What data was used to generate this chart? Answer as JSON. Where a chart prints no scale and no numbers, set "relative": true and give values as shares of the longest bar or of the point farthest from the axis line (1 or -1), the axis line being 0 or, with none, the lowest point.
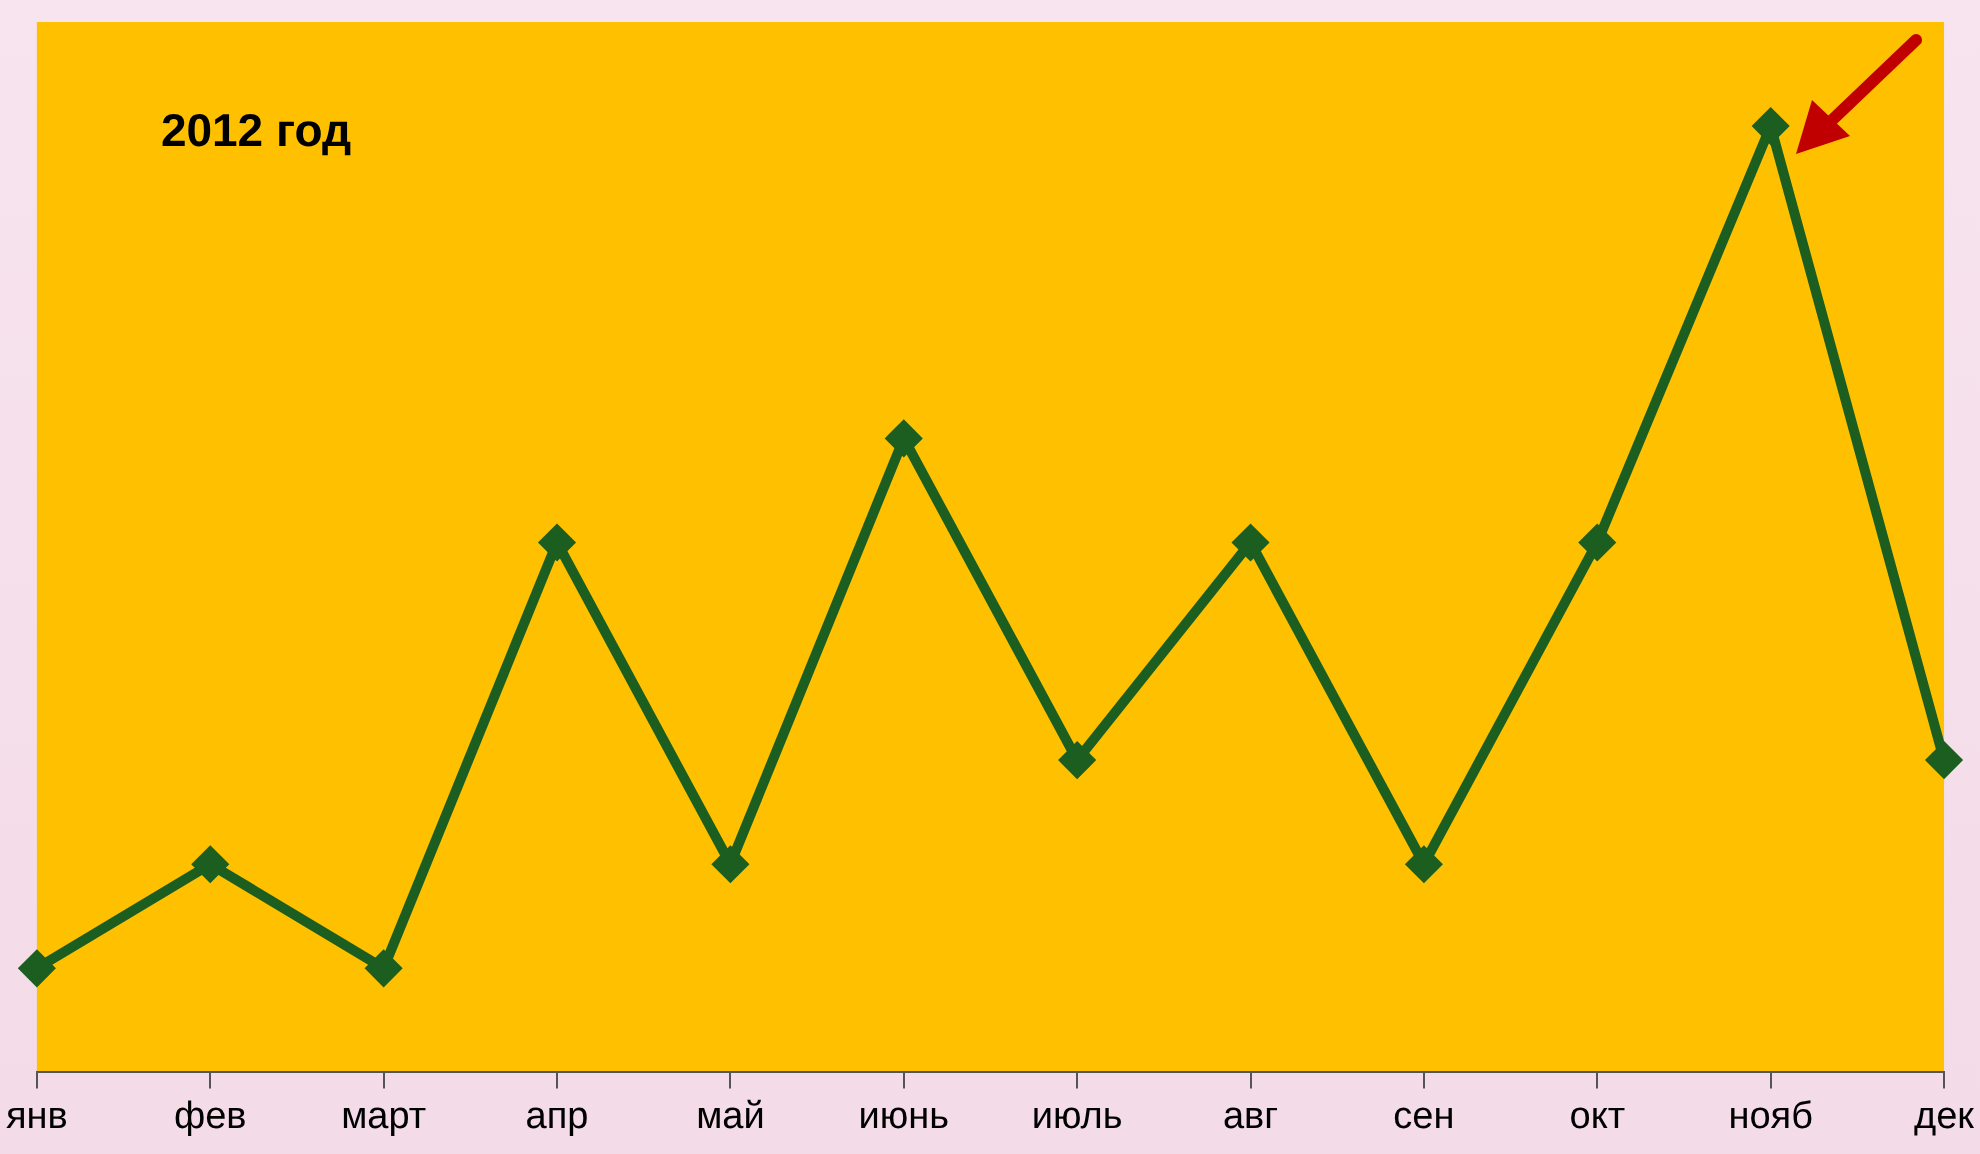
{
  "chart_data": {
    "type": "line",
    "title": "2012 год",
    "relative": true,
    "categories": [
      "янв",
      "фев",
      "март",
      "апр",
      "май",
      "июнь",
      "июль",
      "авг",
      "сен",
      "окт",
      "нояб",
      "дек"
    ],
    "series": [
      {
        "color": "#1b5e20",
        "values": [
          0.11,
          0.22,
          0.11,
          0.56,
          0.22,
          0.67,
          0.33,
          0.56,
          0.22,
          0.56,
          1,
          0.33
        ]
      }
    ],
    "marker": "diamond",
    "line_style": "solid",
    "grid": false,
    "legend": false
  }
}
